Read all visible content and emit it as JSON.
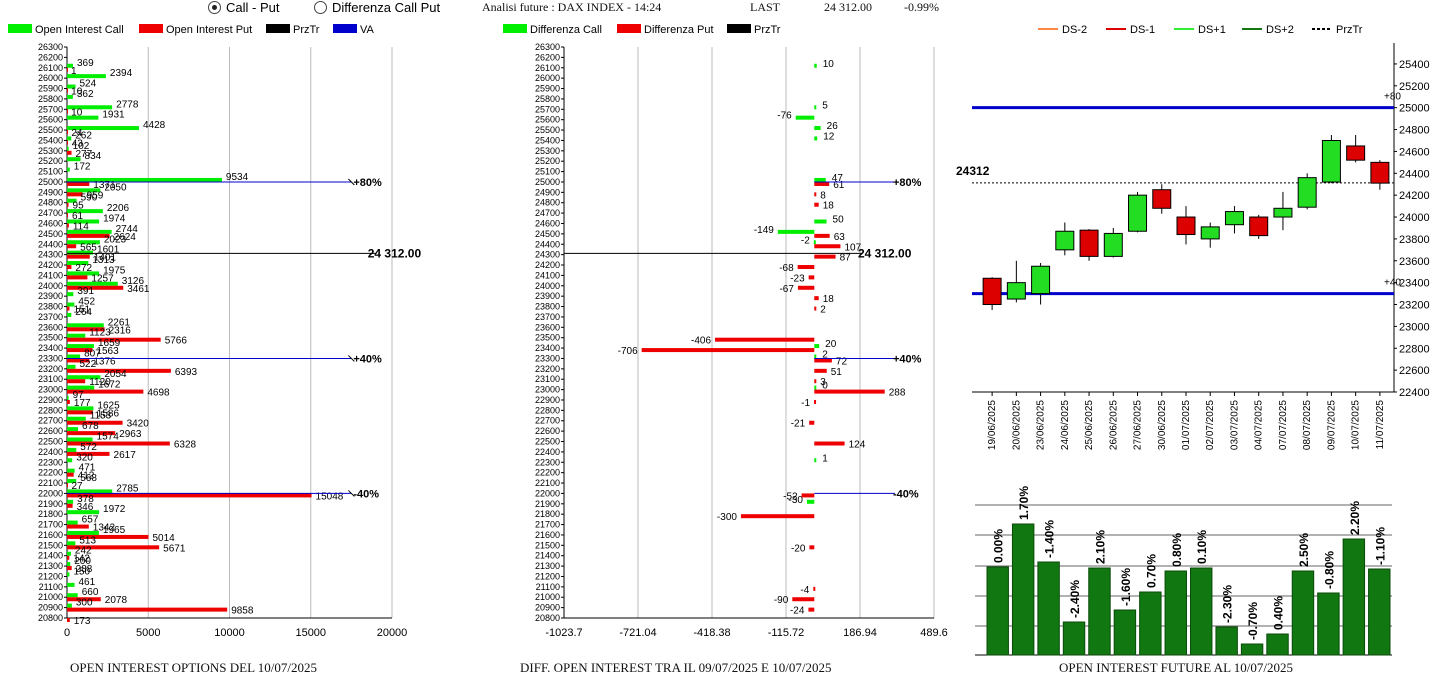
{
  "header": {
    "radio_call_put": "Call - Put",
    "radio_diff": "Differenza Call Put",
    "analisi": "Analisi future : DAX INDEX - 14:24",
    "last_label": "LAST",
    "last_value": "24 312.00",
    "last_change": "-0.99%"
  },
  "captions": {
    "left": "OPEN INTEREST OPTIONS DEL 10/07/2025",
    "middle": "DIFF. OPEN INTEREST TRA IL 09/07/2025 E 10/07/2025",
    "right": "OPEN INTEREST FUTURE AL 10/07/2025"
  },
  "colors": {
    "call": "#00ee00",
    "put": "#ee0000",
    "prztr": "#000000",
    "va": "#0000cc",
    "candle_up": "#22dd22",
    "candle_down": "#dd0000",
    "bar": "#117711"
  },
  "chart_data": [
    {
      "type": "bar",
      "orientation": "horizontal",
      "legend": [
        "Open Interest Call",
        "Open Interest Put",
        "PrzTr",
        "VA"
      ],
      "yaxis_ticks": [
        26300,
        26200,
        26100,
        26000,
        25900,
        25800,
        25700,
        25600,
        25500,
        25400,
        25300,
        25200,
        25100,
        25000,
        24900,
        24800,
        24700,
        24600,
        24500,
        24400,
        24300,
        24200,
        24100,
        24000,
        23900,
        23800,
        23700,
        23600,
        23500,
        23400,
        23300,
        23200,
        23100,
        23000,
        22900,
        22800,
        22700,
        22600,
        22500,
        22400,
        22300,
        22200,
        22100,
        22000,
        21900,
        21800,
        21700,
        21600,
        21500,
        21400,
        21300,
        21200,
        21100,
        21000,
        20900,
        20800
      ],
      "xaxis_ticks": [
        0,
        5000,
        10000,
        15000,
        20000
      ],
      "xlim": [
        0,
        20000
      ],
      "strikes": [
        26200,
        26100,
        26000,
        25900,
        25800,
        25700,
        25600,
        25500,
        25400,
        25300,
        25200,
        25100,
        25000,
        24900,
        24800,
        24700,
        24600,
        24500,
        24400,
        24300,
        24200,
        24100,
        24000,
        23900,
        23800,
        23700,
        23600,
        23500,
        23400,
        23300,
        23200,
        23100,
        23000,
        22900,
        22800,
        22700,
        22600,
        22500,
        22400,
        22300,
        22200,
        22100,
        22000,
        21900,
        21800,
        21700,
        21600,
        21500,
        21400,
        21300,
        21200,
        21100,
        21000,
        20900,
        20800
      ],
      "call": [
        0,
        369,
        2394,
        524,
        362,
        2778,
        1931,
        4428,
        262,
        102,
        834,
        172,
        9534,
        2050,
        590,
        2206,
        1974,
        2744,
        2023,
        1601,
        1313,
        1975,
        3126,
        391,
        452,
        264,
        2261,
        1123,
        1659,
        807,
        522,
        2054,
        1672,
        97,
        1625,
        1153,
        678,
        1574,
        572,
        320,
        471,
        568,
        2785,
        378,
        1972,
        657,
        1965,
        513,
        242,
        200,
        150,
        461,
        660,
        300,
        0
      ],
      "put": [
        0,
        1,
        0,
        10,
        0,
        10,
        0,
        24,
        43,
        277,
        0,
        0,
        1371,
        959,
        95,
        61,
        114,
        2624,
        565,
        1401,
        272,
        1257,
        3461,
        0,
        151,
        0,
        2316,
        5766,
        1563,
        1376,
        6393,
        1120,
        4698,
        177,
        1586,
        3420,
        2963,
        6328,
        2617,
        0,
        412,
        27,
        15048,
        346,
        0,
        1342,
        5014,
        5671,
        142,
        288,
        0,
        0,
        2078,
        9858,
        173
      ],
      "prztr": {
        "value": 24312,
        "label": "24 312.00"
      },
      "va_lines": [
        {
          "strike": 25000,
          "label": "+80%",
          "x": 17500
        },
        {
          "strike": 23300,
          "label": "+40%",
          "x": 17500
        },
        {
          "strike": 22000,
          "label": "-40%",
          "x": 17500
        }
      ]
    },
    {
      "type": "bar",
      "orientation": "horizontal",
      "legend": [
        "Differenza Call",
        "Differenza Put",
        "PrzTr"
      ],
      "xaxis_ticks": [
        -1023.7,
        -721.04,
        -418.38,
        -115.72,
        186.94,
        489.6
      ],
      "xlim": [
        -1023.7,
        489.6
      ],
      "diff_call": {
        "26100": 10,
        "25700": 5,
        "25600": -76,
        "25500": 26,
        "25400": 12,
        "25000": 47,
        "24600": 50,
        "24500": -149,
        "24400": -2,
        "23400": 20,
        "23300": 2,
        "23000": 0,
        "22300": 1,
        "21900": -30
      },
      "diff_put": {
        "25000": 61,
        "24900": 8,
        "24800": 18,
        "24500": 63,
        "24400": 107,
        "24300": 87,
        "24200": -68,
        "24100": -23,
        "24000": -67,
        "23900": 18,
        "23800": 2,
        "23500": -406,
        "23400": -706,
        "23300": 72,
        "23200": 51,
        "23100": 3,
        "23000": 288,
        "22900": -1,
        "22700": -21,
        "22500": 124,
        "22000": -52,
        "21800": -300,
        "21500": -20,
        "21100": -4,
        "21000": -90,
        "20900": -24
      },
      "prztr_label": "24 312.00",
      "va_lines": [
        {
          "strike": 25000,
          "label": "+80%"
        },
        {
          "strike": 23300,
          "label": "+40%"
        },
        {
          "strike": 22000,
          "label": "-40%"
        }
      ]
    },
    {
      "type": "candlestick",
      "legend": [
        "DS-2",
        "DS-1",
        "DS+1",
        "DS+2",
        "PrzTr"
      ],
      "ylim": [
        22400,
        25500
      ],
      "yaxis_ticks": [
        22400,
        22600,
        22800,
        23000,
        23200,
        23400,
        23600,
        23800,
        24000,
        24200,
        24400,
        24600,
        24800,
        25000,
        25200,
        25400
      ],
      "dates": [
        "19/06/2025",
        "20/06/2025",
        "23/06/2025",
        "24/06/2025",
        "25/06/2025",
        "26/06/2025",
        "27/06/2025",
        "30/06/2025",
        "01/07/2025",
        "02/07/2025",
        "03/07/2025",
        "04/07/2025",
        "07/07/2025",
        "08/07/2025",
        "09/07/2025",
        "10/07/2025",
        "11/07/2025"
      ],
      "ohlc": [
        [
          23440,
          23450,
          23150,
          23200
        ],
        [
          23250,
          23600,
          23220,
          23400
        ],
        [
          23300,
          23580,
          23200,
          23550
        ],
        [
          23700,
          23950,
          23650,
          23870
        ],
        [
          23880,
          23890,
          23600,
          23640
        ],
        [
          23640,
          23900,
          23630,
          23850
        ],
        [
          23870,
          24230,
          23860,
          24200
        ],
        [
          24250,
          24300,
          24030,
          24080
        ],
        [
          24000,
          24100,
          23750,
          23840
        ],
        [
          23800,
          23950,
          23720,
          23910
        ],
        [
          23930,
          24100,
          23850,
          24050
        ],
        [
          24000,
          24020,
          23800,
          23830
        ],
        [
          24000,
          24230,
          23880,
          24080
        ],
        [
          24090,
          24400,
          24070,
          24360
        ],
        [
          24320,
          24750,
          24310,
          24700
        ],
        [
          24650,
          24750,
          24500,
          24520
        ],
        [
          24500,
          24520,
          24250,
          24310
        ]
      ],
      "level_lines": [
        {
          "value": 25000,
          "label": "+80"
        },
        {
          "value": 23300,
          "label": "+40"
        }
      ],
      "prztr": {
        "value": 24312,
        "label": "24312"
      }
    },
    {
      "type": "bar",
      "values": [
        0.0,
        1.7,
        -1.4,
        -2.4,
        2.1,
        -1.6,
        0.7,
        0.8,
        0.1,
        -2.3,
        -0.7,
        0.4,
        2.5,
        -0.8,
        2.2,
        -1.1
      ],
      "labels": [
        "0.00%",
        "1.70%",
        "-1.40%",
        "-2.40%",
        "2.10%",
        "-1.60%",
        "0.70%",
        "0.80%",
        "0.10%",
        "-2.30%",
        "-0.70%",
        "0.40%",
        "2.50%",
        "-0.80%",
        "2.20%",
        "-1.10%"
      ],
      "heights": [
        88,
        131,
        93,
        33,
        87,
        45,
        63,
        84,
        87,
        28,
        11,
        21,
        84,
        62,
        116,
        86
      ]
    }
  ]
}
